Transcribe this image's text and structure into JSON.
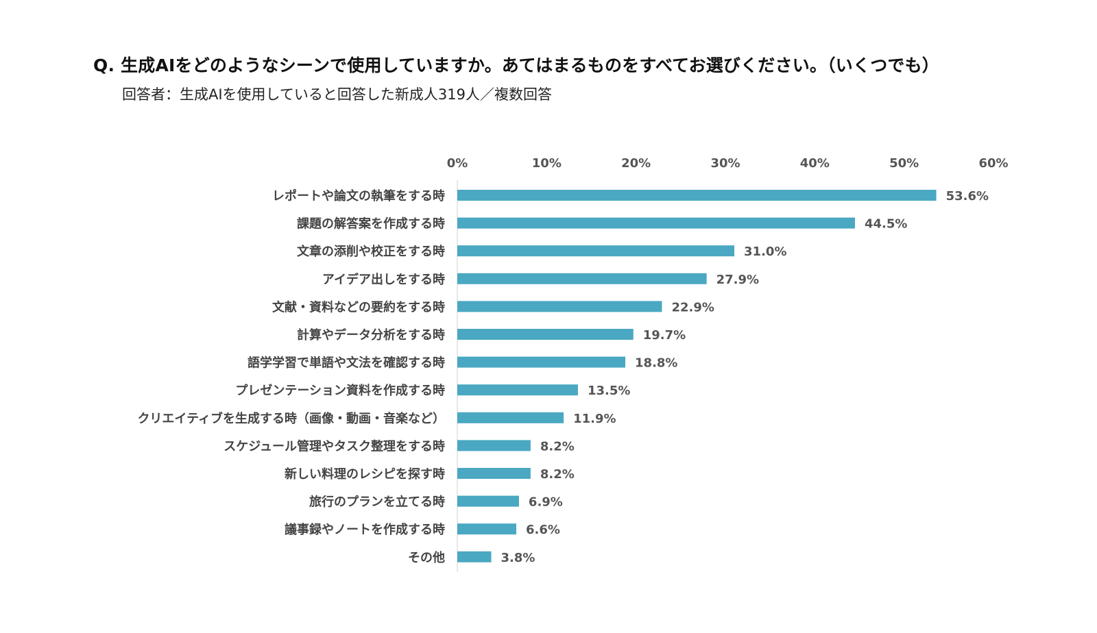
{
  "header": {
    "question": "Q. 生成AIをどのようなシーンで使用していますか。あてはまるものをすべてお選びください。（いくつでも）",
    "respondents": "回答者：生成AIを使用していると回答した新成人319人／複数回答"
  },
  "chart_data": {
    "type": "bar",
    "orientation": "horizontal",
    "title": "Q. 生成AIをどのようなシーンで使用していますか。あてはまるものをすべてお選びください。（いくつでも）",
    "subtitle": "回答者：生成AIを使用していると回答した新成人319人／複数回答",
    "xlabel": "",
    "ylabel": "",
    "xlim": [
      0,
      60
    ],
    "x_ticks": [
      0,
      10,
      20,
      30,
      40,
      50,
      60
    ],
    "x_tick_labels": [
      "0%",
      "10%",
      "20%",
      "30%",
      "40%",
      "50%",
      "60%"
    ],
    "x_axis_position": "top",
    "grid": false,
    "bar_color": "#4aa8c2",
    "categories": [
      "レポートや論文の執筆をする時",
      "課題の解答案を作成する時",
      "文章の添削や校正をする時",
      "アイデア出しをする時",
      "文献・資料などの要約をする時",
      "計算やデータ分析をする時",
      "語学学習で単語や文法を確認する時",
      "プレゼンテーション資料を作成する時",
      "クリエイティブを生成する時（画像・動画・音楽など）",
      "スケジュール管理やタスク整理をする時",
      "新しい料理のレシピを探す時",
      "旅行のプランを立てる時",
      "議事録やノートを作成する時",
      "その他"
    ],
    "values": [
      53.6,
      44.5,
      31.0,
      27.9,
      22.9,
      19.7,
      18.8,
      13.5,
      11.9,
      8.2,
      8.2,
      6.9,
      6.6,
      3.8
    ],
    "value_labels": [
      "53.6%",
      "44.5%",
      "31.0%",
      "27.9%",
      "22.9%",
      "19.7%",
      "18.8%",
      "13.5%",
      "11.9%",
      "8.2%",
      "8.2%",
      "6.9%",
      "6.6%",
      "3.8%"
    ]
  }
}
